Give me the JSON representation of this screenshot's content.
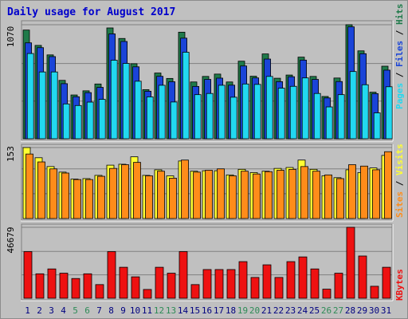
{
  "title": "Daily usage for August 2017",
  "colors": {
    "hits": "#1f7a4a",
    "files": "#1a44d8",
    "pages": "#22d8f0",
    "visits": "#ffff33",
    "sites": "#ff8c1a",
    "kbytes": "#ee1111",
    "weekday_label": "#000080",
    "weekend_label": "#2e8b57",
    "separator": "#000000"
  },
  "chart_data": [
    {
      "type": "bar",
      "categories": [
        "1",
        "2",
        "3",
        "4",
        "5",
        "6",
        "7",
        "8",
        "9",
        "10",
        "11",
        "12",
        "13",
        "14",
        "15",
        "16",
        "17",
        "18",
        "19",
        "20",
        "21",
        "22",
        "23",
        "24",
        "25",
        "26",
        "27",
        "28",
        "29",
        "30",
        "31"
      ],
      "weekend_days": [
        "5",
        "6",
        "12",
        "13",
        "19",
        "20",
        "26",
        "27"
      ],
      "ylim": [
        0,
        1070
      ],
      "ytick_label": "1070",
      "legend": {
        "hits": "Hits",
        "files": "Files",
        "pages": "Pages",
        "sep": "/"
      },
      "grid": true,
      "series": [
        {
          "name": "Hits",
          "values": [
            1020,
            876,
            787,
            548,
            411,
            450,
            514,
            1040,
            941,
            704,
            461,
            617,
            566,
            1000,
            533,
            585,
            607,
            533,
            728,
            587,
            796,
            568,
            598,
            766,
            585,
            397,
            570,
            1070,
            825,
            437,
            681
          ]
        },
        {
          "name": "Files",
          "values": [
            900,
            855,
            771,
            517,
            394,
            433,
            482,
            984,
            913,
            675,
            446,
            586,
            535,
            944,
            491,
            557,
            569,
            503,
            683,
            571,
            748,
            536,
            582,
            738,
            557,
            383,
            537,
            1050,
            798,
            423,
            644
          ]
        },
        {
          "name": "Pages",
          "values": [
            800,
            627,
            627,
            327,
            312,
            344,
            370,
            737,
            707,
            540,
            393,
            502,
            345,
            812,
            414,
            425,
            502,
            390,
            514,
            510,
            585,
            475,
            492,
            571,
            425,
            299,
            414,
            631,
            507,
            243,
            488
          ]
        }
      ]
    },
    {
      "type": "bar",
      "categories": [
        "1",
        "2",
        "3",
        "4",
        "5",
        "6",
        "7",
        "8",
        "9",
        "10",
        "11",
        "12",
        "13",
        "14",
        "15",
        "16",
        "17",
        "18",
        "19",
        "20",
        "21",
        "22",
        "23",
        "24",
        "25",
        "26",
        "27",
        "28",
        "29",
        "30",
        "31"
      ],
      "ylim": [
        0,
        153
      ],
      "ytick_label": "153",
      "legend": {
        "visits": "Visits",
        "sites": "Sites",
        "sep": "/"
      },
      "grid": true,
      "series": [
        {
          "name": "Visits",
          "values": [
            153,
            131,
            112,
            100,
            85,
            86,
            93,
            115,
            117,
            133,
            93,
            105,
            92,
            124,
            102,
            103,
            103,
            94,
            106,
            99,
            102,
            108,
            110,
            126,
            106,
            92,
            88,
            105,
            99,
            109,
            136
          ]
        },
        {
          "name": "Sites",
          "values": [
            139,
            122,
            107,
            98,
            84,
            84,
            91,
            108,
            116,
            121,
            92,
            102,
            87,
            126,
            100,
            104,
            107,
            92,
            102,
            96,
            101,
            104,
            106,
            112,
            102,
            94,
            86,
            116,
            113,
            105,
            144
          ]
        }
      ]
    },
    {
      "type": "bar",
      "categories": [
        "1",
        "2",
        "3",
        "4",
        "5",
        "6",
        "7",
        "8",
        "9",
        "10",
        "11",
        "12",
        "13",
        "14",
        "15",
        "16",
        "17",
        "18",
        "19",
        "20",
        "21",
        "22",
        "23",
        "24",
        "25",
        "26",
        "27",
        "28",
        "29",
        "30",
        "31"
      ],
      "ylim": [
        0,
        46679
      ],
      "ytick_label": "46679",
      "legend": {
        "kbytes": "KBytes"
      },
      "grid": true,
      "series": [
        {
          "name": "KBytes",
          "values": [
            30700,
            16100,
            19300,
            16500,
            13000,
            16100,
            9000,
            30700,
            20400,
            14100,
            5800,
            20400,
            16500,
            30700,
            9000,
            18900,
            18900,
            18900,
            24100,
            13700,
            22000,
            13700,
            24100,
            27200,
            19300,
            6000,
            16500,
            46679,
            27800,
            7900,
            20400
          ]
        }
      ]
    }
  ]
}
